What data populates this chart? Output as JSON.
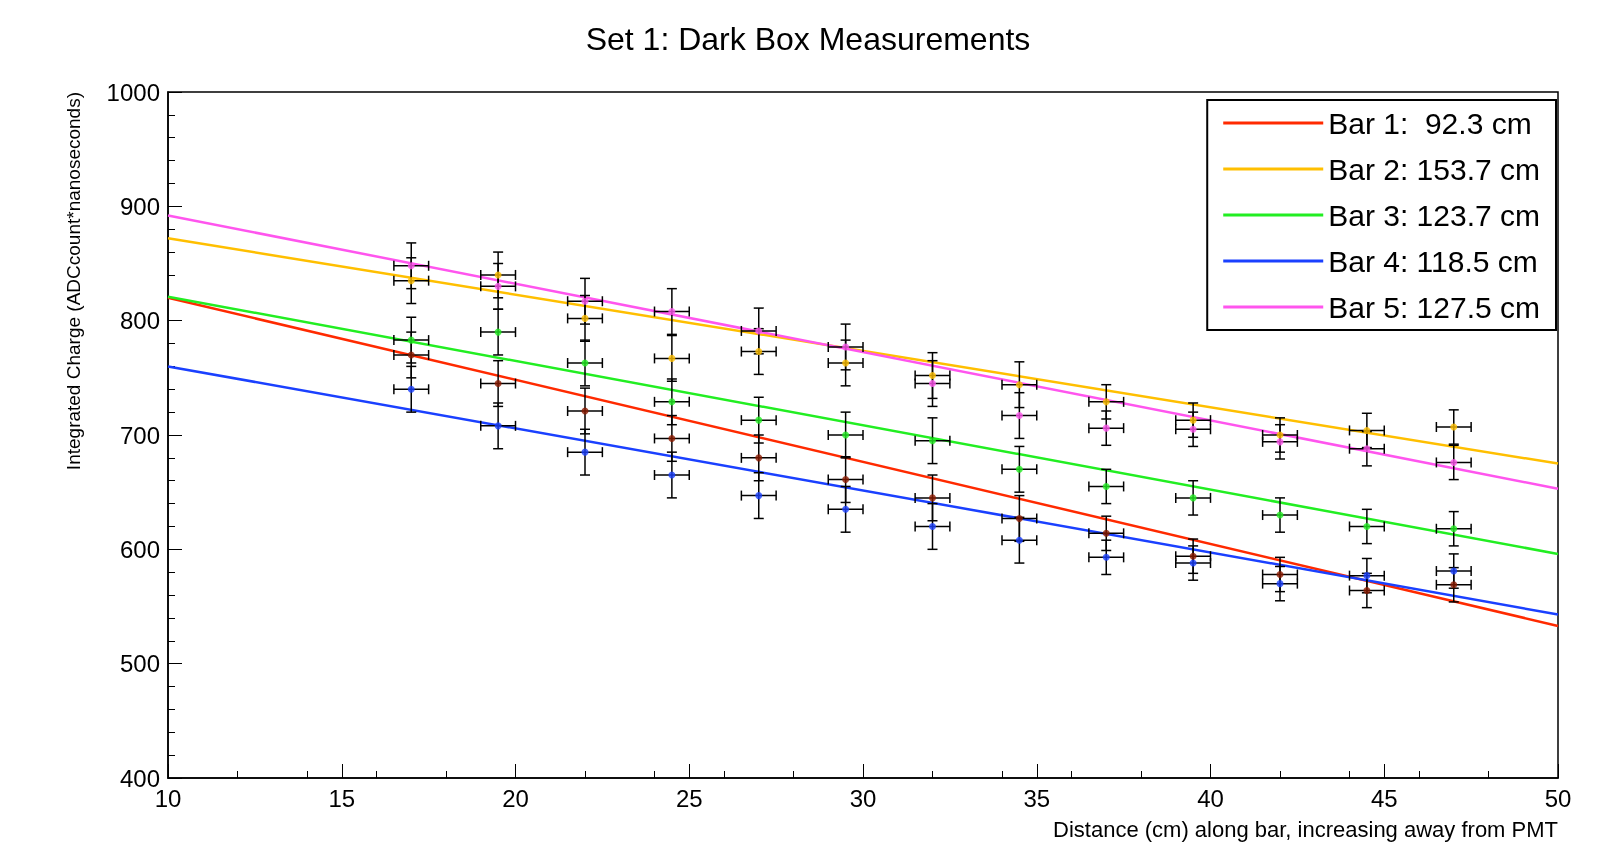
{
  "chart_data": {
    "type": "scatter",
    "title": "Set 1: Dark Box Measurements",
    "xlabel": "Distance (cm) along bar, increasing away from PMT",
    "ylabel": "Integrated Charge (ADCcount*nanoseconds)",
    "xlim": [
      10,
      50
    ],
    "xticks": [
      10,
      15,
      20,
      25,
      30,
      35,
      40,
      45,
      50
    ],
    "ylim": [
      400,
      1000
    ],
    "yticks": [
      400,
      500,
      600,
      700,
      800,
      900,
      1000
    ],
    "grid": false,
    "legend": "top right",
    "series": [
      {
        "type": "line",
        "name": "Bar 1:  92.3 cm",
        "color": "#ff2a00",
        "marker": "none",
        "x": [
          10,
          50
        ],
        "values": [
          820,
          533
        ]
      },
      {
        "type": "line",
        "name": "Bar 2: 153.7 cm",
        "color": "#ffbf00",
        "marker": "none",
        "x": [
          10,
          50
        ],
        "values": [
          872,
          675
        ]
      },
      {
        "type": "line",
        "name": "Bar 3: 123.7 cm",
        "color": "#22ee22",
        "marker": "none",
        "x": [
          10,
          50
        ],
        "values": [
          821,
          596
        ]
      },
      {
        "type": "line",
        "name": "Bar 4: 118.5 cm",
        "color": "#1a40ff",
        "marker": "none",
        "x": [
          10,
          50
        ],
        "values": [
          760,
          543
        ]
      },
      {
        "type": "line",
        "name": "Bar 5: 127.5 cm",
        "color": "#ff55ee",
        "marker": "none",
        "x": [
          10,
          50
        ],
        "values": [
          892,
          653
        ]
      },
      {
        "type": "scatter",
        "color": "#8b1a00",
        "marker": "circle",
        "x": [
          17,
          19.5,
          22,
          24.5,
          27,
          29.5,
          32,
          34.5,
          37,
          39.5,
          42,
          44.5,
          47
        ],
        "values": [
          770,
          745,
          721,
          697,
          680,
          661,
          645,
          627,
          614,
          594,
          578,
          564,
          569
        ],
        "errors": [
          20,
          20,
          20,
          20,
          20,
          20,
          20,
          20,
          15,
          15,
          15,
          15,
          15
        ],
        "xerrors": [
          0.5,
          0.5,
          0.5,
          0.5,
          0.5,
          0.5,
          0.5,
          0.5,
          0.5,
          0.5,
          0.5,
          0.5,
          0.5
        ]
      },
      {
        "type": "scatter",
        "color": "#ffbf00",
        "marker": "circle",
        "x": [
          17,
          19.5,
          22,
          24.5,
          27,
          29.5,
          32,
          34.5,
          37,
          39.5,
          42,
          44.5,
          47
        ],
        "values": [
          835,
          840,
          802,
          767,
          773,
          763,
          752,
          744,
          729,
          713,
          700,
          704,
          707
        ],
        "errors": [
          20,
          20,
          20,
          20,
          20,
          20,
          20,
          20,
          15,
          15,
          15,
          15,
          15
        ],
        "xerrors": [
          0.5,
          0.5,
          0.5,
          0.5,
          0.5,
          0.5,
          0.5,
          0.5,
          0.5,
          0.5,
          0.5,
          0.5,
          0.5
        ]
      },
      {
        "type": "scatter",
        "color": "#22ee22",
        "marker": "circle",
        "x": [
          17,
          19.5,
          22,
          24.5,
          27,
          29.5,
          32,
          34.5,
          37,
          39.5,
          42,
          44.5,
          47
        ],
        "values": [
          783,
          790,
          763,
          729,
          713,
          700,
          695,
          670,
          655,
          645,
          630,
          620,
          618
        ],
        "errors": [
          20,
          20,
          20,
          20,
          20,
          20,
          20,
          20,
          15,
          15,
          15,
          15,
          15
        ],
        "xerrors": [
          0.5,
          0.5,
          0.5,
          0.5,
          0.5,
          0.5,
          0.5,
          0.5,
          0.5,
          0.5,
          0.5,
          0.5,
          0.5
        ]
      },
      {
        "type": "scatter",
        "color": "#1a40ff",
        "marker": "circle",
        "x": [
          17,
          19.5,
          22,
          24.5,
          27,
          29.5,
          32,
          34.5,
          37,
          39.5,
          42,
          44.5,
          47
        ],
        "values": [
          740,
          708,
          685,
          665,
          647,
          635,
          620,
          608,
          593,
          588,
          570,
          577,
          581
        ],
        "errors": [
          20,
          20,
          20,
          20,
          20,
          20,
          20,
          20,
          15,
          15,
          15,
          15,
          15
        ],
        "xerrors": [
          0.5,
          0.5,
          0.5,
          0.5,
          0.5,
          0.5,
          0.5,
          0.5,
          0.5,
          0.5,
          0.5,
          0.5,
          0.5
        ]
      },
      {
        "type": "scatter",
        "color": "#ff55ee",
        "marker": "circle",
        "x": [
          17,
          19.5,
          22,
          24.5,
          27,
          29.5,
          32,
          34.5,
          37,
          39.5,
          42,
          44.5,
          47
        ],
        "values": [
          848,
          830,
          817,
          808,
          791,
          777,
          745,
          717,
          706,
          705,
          694,
          688,
          676
        ],
        "errors": [
          20,
          20,
          20,
          20,
          20,
          20,
          20,
          20,
          15,
          15,
          15,
          15,
          15
        ],
        "xerrors": [
          0.5,
          0.5,
          0.5,
          0.5,
          0.5,
          0.5,
          0.5,
          0.5,
          0.5,
          0.5,
          0.5,
          0.5,
          0.5
        ]
      }
    ]
  }
}
